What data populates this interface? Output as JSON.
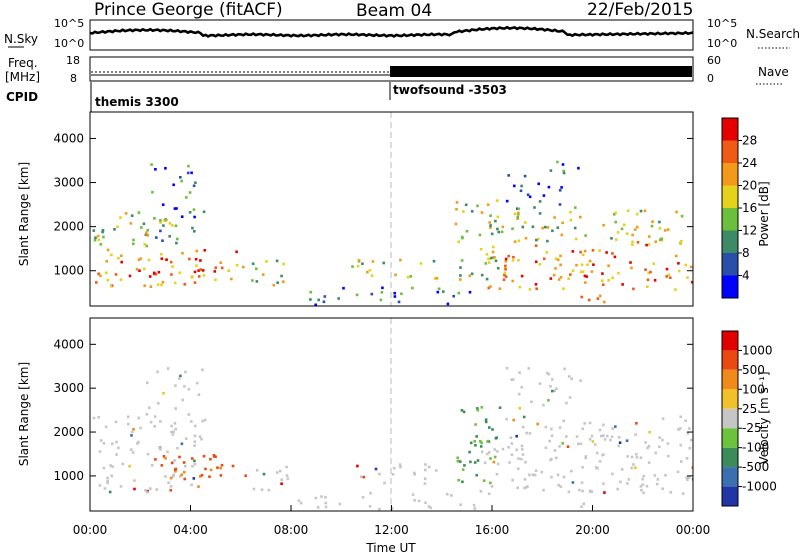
{
  "header": {
    "station": "Prince George (fitACF)",
    "beam": "Beam 04",
    "date": "22/Feb/2015"
  },
  "strips": {
    "nsky_label": "N.Sky",
    "nsky_ticks": [
      "10^5",
      "10^0"
    ],
    "nsearch_label": "N.Search",
    "nsearch_ticks": [
      "10^5",
      "10^0"
    ],
    "freq_label": "Freq.",
    "freq_unit": "[MHz]",
    "freq_ticks": [
      "18",
      "8"
    ],
    "nave_label": "Nave",
    "nave_ticks": [
      "60",
      "0"
    ],
    "cpid_label": "CPID",
    "cpid_1": "themis 3300",
    "cpid_2": "twofsound -3503"
  },
  "chart_data": [
    {
      "type": "heatmap",
      "name": "power",
      "ylabel": "Slant Range [km]",
      "ylim": [
        200,
        4600
      ],
      "y_ticks": [
        "1000",
        "2000",
        "3000",
        "4000"
      ],
      "x_ticks": [
        "00:00",
        "04:00",
        "08:00",
        "12:00",
        "16:00",
        "20:00",
        "00:00"
      ],
      "xlim_hours": [
        0,
        24
      ],
      "colorbar": {
        "label": "Power [dB]",
        "ticks": [
          "4",
          "8",
          "12",
          "16",
          "20",
          "24",
          "28"
        ],
        "colors": [
          "#0000ff",
          "#2a4fa8",
          "#3d8a66",
          "#6cbf3c",
          "#e4d21b",
          "#f39a1a",
          "#ef5a14",
          "#e50000"
        ]
      }
    },
    {
      "type": "heatmap",
      "name": "velocity",
      "ylabel": "Slant Range [km]",
      "ylim": [
        200,
        4600
      ],
      "y_ticks": [
        "1000",
        "2000",
        "3000",
        "4000"
      ],
      "x_ticks": [
        "00:00",
        "04:00",
        "08:00",
        "12:00",
        "16:00",
        "20:00",
        "00:00"
      ],
      "xlim_hours": [
        0,
        24
      ],
      "xlabel": "Time UT",
      "colorbar": {
        "label": "Velocity [m s⁻¹]",
        "ticks": [
          "1000",
          "500",
          "100",
          "25",
          "-25",
          "-100",
          "-500",
          "-1000"
        ],
        "colors": [
          "#2235a6",
          "#3a6fb0",
          "#3b8c5a",
          "#6cc23a",
          "#c6c6c6",
          "#f0c12a",
          "#f08a1a",
          "#ea4a12",
          "#e00000"
        ]
      }
    }
  ]
}
